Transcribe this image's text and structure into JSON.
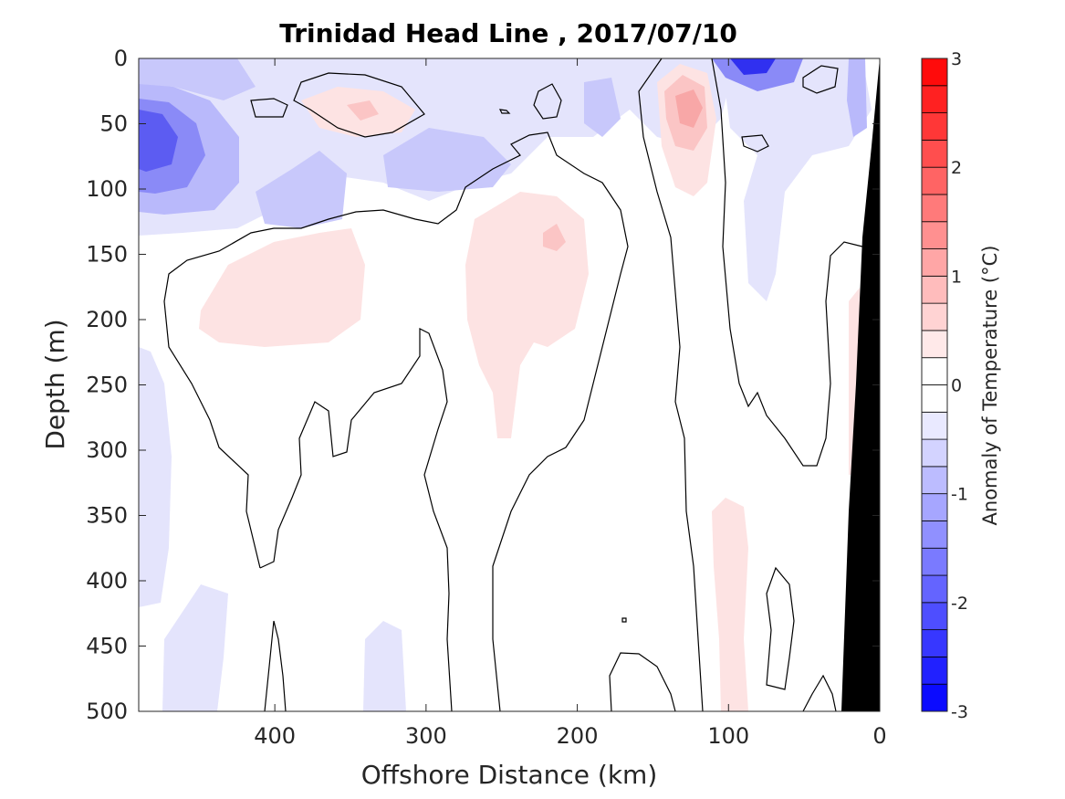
{
  "chart_data": {
    "type": "heatmap",
    "title": "Trinidad Head Line , 2017/07/10",
    "xlabel": "Offshore Distance (km)",
    "ylabel": "Depth (m)",
    "xlim": [
      490,
      0
    ],
    "ylim": [
      0,
      500
    ],
    "x_reversed": true,
    "y_reversed": true,
    "xticks": [
      400,
      300,
      200,
      100,
      0
    ],
    "yticks": [
      0,
      50,
      100,
      150,
      200,
      250,
      300,
      350,
      400,
      450,
      500
    ],
    "colorbar": {
      "label": "Anomaly of Temperature (°C)",
      "range": [
        -3,
        3
      ],
      "level_step": 0.25,
      "ticks": [
        -3,
        -2,
        -1,
        0,
        1,
        2,
        3
      ],
      "low_color": "#0000ff",
      "mid_color": "#ffffff",
      "high_color": "#ff0000"
    },
    "bathymetry_color": "#000000",
    "anomaly_features": [
      {
        "x": 470,
        "y": 55,
        "value": -1.75
      },
      {
        "x": 400,
        "y": 100,
        "value": -0.75
      },
      {
        "x": 250,
        "y": 80,
        "value": -0.75
      },
      {
        "x": 340,
        "y": 35,
        "value": 0.5
      },
      {
        "x": 130,
        "y": 35,
        "value": 0.75
      },
      {
        "x": 85,
        "y": 5,
        "value": -2.25
      },
      {
        "x": 350,
        "y": 200,
        "value": 0.25
      },
      {
        "x": 220,
        "y": 140,
        "value": 0.5
      },
      {
        "x": 95,
        "y": 450,
        "value": 0.25
      },
      {
        "x": 470,
        "y": 350,
        "value": -0.25
      }
    ]
  }
}
